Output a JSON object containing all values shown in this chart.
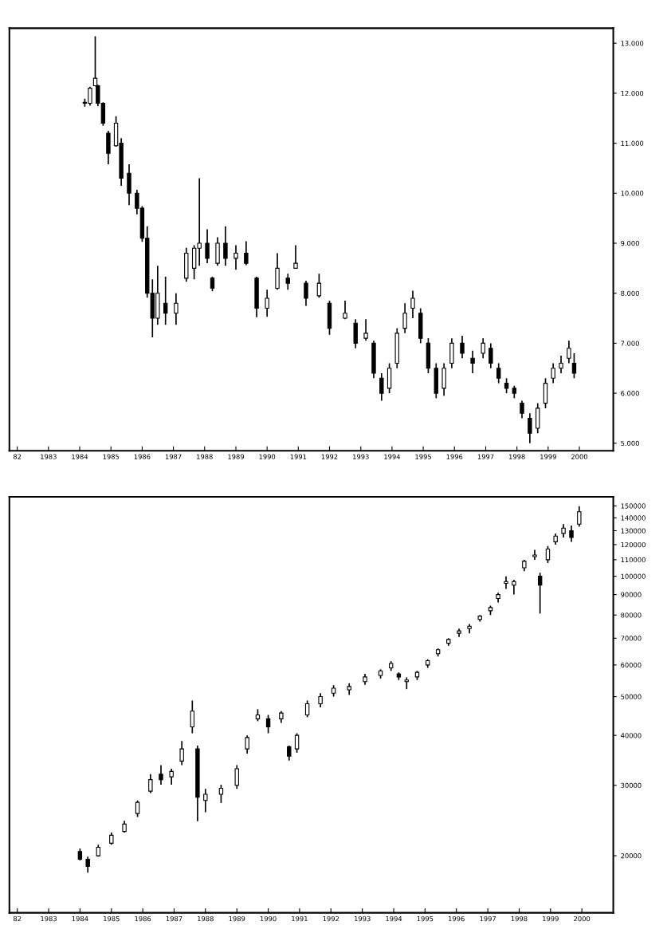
{
  "chart_data": [
    {
      "type": "candlestick",
      "x": [
        "1984-03",
        "1984-05",
        "1984-07",
        "1984-08",
        "1984-10",
        "1984-12",
        "1985-03",
        "1985-05",
        "1985-08",
        "1985-11",
        "1986-01",
        "1986-03",
        "1986-05",
        "1986-07",
        "1986-10",
        "1987-02",
        "1987-06",
        "1987-09",
        "1987-11",
        "1988-02",
        "1988-04",
        "1988-06",
        "1988-09",
        "1989-01",
        "1989-05",
        "1989-09",
        "1990-01",
        "1990-05",
        "1990-09",
        "1990-12",
        "1991-04",
        "1991-09",
        "1992-01",
        "1992-07",
        "1992-11",
        "1993-03",
        "1993-06",
        "1993-09",
        "1993-12",
        "1994-03",
        "1994-06",
        "1994-09",
        "1994-12",
        "1995-03",
        "1995-06",
        "1995-09",
        "1995-12",
        "1996-04",
        "1996-08",
        "1996-12",
        "1997-03",
        "1997-06",
        "1997-09",
        "1997-12",
        "1998-03",
        "1998-06",
        "1998-09",
        "1998-12",
        "1999-03",
        "1999-06",
        "1999-09",
        "1999-11"
      ],
      "ohlc": [
        [
          11.82,
          11.89,
          11.73,
          11.8
        ],
        [
          11.8,
          12.13,
          11.75,
          12.1
        ],
        [
          12.15,
          13.14,
          12.14,
          12.3
        ],
        [
          12.15,
          12.17,
          11.74,
          11.8
        ],
        [
          11.8,
          11.82,
          11.35,
          11.4
        ],
        [
          11.2,
          11.25,
          10.58,
          10.8
        ],
        [
          10.95,
          11.54,
          10.93,
          11.4
        ],
        [
          11.0,
          11.1,
          10.15,
          10.3
        ],
        [
          10.4,
          10.58,
          9.76,
          10.0
        ],
        [
          10.0,
          10.07,
          9.58,
          9.7
        ],
        [
          9.7,
          9.74,
          9.03,
          9.1
        ],
        [
          9.1,
          9.34,
          7.91,
          8.0
        ],
        [
          8.0,
          8.28,
          7.12,
          7.5
        ],
        [
          7.5,
          8.55,
          7.37,
          8.0
        ],
        [
          7.8,
          8.33,
          7.37,
          7.6
        ],
        [
          7.6,
          8.0,
          7.37,
          7.8
        ],
        [
          8.3,
          8.91,
          8.23,
          8.8
        ],
        [
          8.5,
          8.96,
          8.28,
          8.9
        ],
        [
          8.9,
          10.3,
          8.55,
          9.0
        ],
        [
          9.0,
          9.28,
          8.6,
          8.7
        ],
        [
          8.3,
          8.33,
          8.04,
          8.1
        ],
        [
          8.6,
          9.12,
          8.55,
          9.0
        ],
        [
          9.0,
          9.34,
          8.55,
          8.7
        ],
        [
          8.7,
          8.96,
          8.47,
          8.8
        ],
        [
          8.8,
          9.04,
          8.56,
          8.6
        ],
        [
          8.3,
          8.33,
          7.52,
          7.7
        ],
        [
          7.7,
          8.07,
          7.53,
          7.9
        ],
        [
          8.1,
          8.8,
          8.07,
          8.5
        ],
        [
          8.3,
          8.39,
          8.07,
          8.2
        ],
        [
          8.5,
          8.96,
          8.49,
          8.6
        ],
        [
          8.2,
          8.25,
          7.75,
          7.9
        ],
        [
          7.95,
          8.39,
          7.91,
          8.2
        ],
        [
          7.8,
          7.85,
          7.17,
          7.3
        ],
        [
          7.5,
          7.85,
          7.48,
          7.6
        ],
        [
          7.4,
          7.48,
          6.9,
          7.0
        ],
        [
          7.1,
          7.48,
          7.05,
          7.2
        ],
        [
          7.0,
          7.05,
          6.3,
          6.4
        ],
        [
          6.3,
          6.4,
          5.85,
          6.0
        ],
        [
          6.1,
          6.6,
          6.0,
          6.5
        ],
        [
          6.6,
          7.3,
          6.5,
          7.2
        ],
        [
          7.3,
          7.8,
          7.2,
          7.6
        ],
        [
          7.7,
          8.05,
          7.5,
          7.9
        ],
        [
          7.6,
          7.7,
          7.0,
          7.1
        ],
        [
          7.0,
          7.1,
          6.4,
          6.5
        ],
        [
          6.5,
          6.6,
          5.9,
          6.0
        ],
        [
          6.1,
          6.6,
          5.95,
          6.5
        ],
        [
          6.6,
          7.1,
          6.5,
          7.0
        ],
        [
          7.0,
          7.15,
          6.7,
          6.8
        ],
        [
          6.7,
          6.85,
          6.4,
          6.6
        ],
        [
          6.8,
          7.1,
          6.7,
          7.0
        ],
        [
          6.9,
          7.0,
          6.5,
          6.6
        ],
        [
          6.5,
          6.6,
          6.2,
          6.3
        ],
        [
          6.2,
          6.3,
          6.0,
          6.1
        ],
        [
          6.1,
          6.15,
          5.9,
          6.0
        ],
        [
          5.8,
          5.85,
          5.5,
          5.6
        ],
        [
          5.5,
          5.6,
          5.0,
          5.2
        ],
        [
          5.3,
          5.8,
          5.2,
          5.7
        ],
        [
          5.8,
          6.3,
          5.7,
          6.2
        ],
        [
          6.3,
          6.6,
          6.2,
          6.5
        ],
        [
          6.5,
          6.75,
          6.4,
          6.6
        ],
        [
          6.7,
          7.05,
          6.6,
          6.9
        ],
        [
          6.6,
          6.8,
          6.3,
          6.4
        ]
      ],
      "color": "#000000",
      "xlim": [
        "1981-10",
        "2001-02"
      ],
      "xticks": [
        {
          "value": "1982",
          "label": "82"
        },
        "1983",
        "1984",
        "1985",
        "1986",
        "1987",
        "1988",
        "1989",
        "1990",
        "1991",
        "1992",
        "1993",
        "1994",
        "1995",
        "1996",
        "1997",
        "1998",
        "1999",
        "2000"
      ],
      "ylim": [
        4.85,
        13.3
      ],
      "yticks": [
        {
          "value": 5,
          "label": "5.000"
        },
        {
          "value": 6,
          "label": "6.000"
        },
        {
          "value": 7,
          "label": "7.000"
        },
        {
          "value": 8,
          "label": "8.000"
        },
        {
          "value": 9,
          "label": "9.000"
        },
        {
          "value": 10,
          "label": "10.000"
        },
        {
          "value": 11,
          "label": "11.000"
        },
        {
          "value": 12,
          "label": "12.000"
        },
        {
          "value": 13,
          "label": "13.000"
        }
      ],
      "grid": false,
      "legend": false
    },
    {
      "type": "candlestick",
      "x": [
        "1984-01",
        "1984-04",
        "1984-08",
        "1985-01",
        "1985-06",
        "1985-11",
        "1986-04",
        "1986-08",
        "1986-12",
        "1987-04",
        "1987-08",
        "1987-10",
        "1988-01",
        "1988-07",
        "1989-01",
        "1989-05",
        "1989-09",
        "1990-01",
        "1990-06",
        "1990-09",
        "1990-12",
        "1991-04",
        "1991-09",
        "1992-02",
        "1992-08",
        "1993-02",
        "1993-08",
        "1993-12",
        "1994-03",
        "1994-06",
        "1994-10",
        "1995-02",
        "1995-06",
        "1995-10",
        "1996-02",
        "1996-06",
        "1996-10",
        "1997-02",
        "1997-05",
        "1997-08",
        "1997-11",
        "1998-03",
        "1998-07",
        "1998-09",
        "1998-12",
        "1999-03",
        "1999-06",
        "1999-09",
        "1999-12"
      ],
      "ohlc": [
        [
          20500,
          20850,
          19460,
          19600
        ],
        [
          19600,
          19900,
          18140,
          18800
        ],
        [
          20000,
          21300,
          19900,
          21000
        ],
        [
          21500,
          22850,
          21300,
          22500
        ],
        [
          23000,
          24450,
          22850,
          24000
        ],
        [
          25500,
          27500,
          25000,
          27200
        ],
        [
          29000,
          32000,
          28700,
          31000
        ],
        [
          32000,
          33700,
          30100,
          31000
        ],
        [
          31500,
          33000,
          30100,
          32500
        ],
        [
          34500,
          38700,
          33700,
          37000
        ],
        [
          42000,
          48900,
          40500,
          46000
        ],
        [
          37000,
          37700,
          24400,
          28000
        ],
        [
          27500,
          29400,
          25700,
          28500
        ],
        [
          28500,
          30100,
          27100,
          29500
        ],
        [
          30000,
          33700,
          29400,
          33000
        ],
        [
          37000,
          40000,
          36000,
          39500
        ],
        [
          44000,
          46500,
          43400,
          45000
        ],
        [
          44000,
          45000,
          40500,
          42000
        ],
        [
          44000,
          46000,
          43000,
          45500
        ],
        [
          37500,
          37700,
          34600,
          35500
        ],
        [
          37000,
          40500,
          36200,
          40000
        ],
        [
          45000,
          48900,
          44400,
          48000
        ],
        [
          48000,
          50980,
          47000,
          50000
        ],
        [
          51000,
          53400,
          50000,
          52500
        ],
        [
          52000,
          54000,
          50500,
          53000
        ],
        [
          54500,
          57000,
          53500,
          56000
        ],
        [
          56500,
          58500,
          55500,
          58000
        ],
        [
          59000,
          61300,
          58000,
          60500
        ],
        [
          57000,
          57500,
          55000,
          56000
        ],
        [
          54500,
          55900,
          52200,
          55000
        ],
        [
          56000,
          58000,
          55000,
          57500
        ],
        [
          60000,
          62000,
          59000,
          61500
        ],
        [
          64000,
          66000,
          63000,
          65500
        ],
        [
          68000,
          70000,
          67000,
          69500
        ],
        [
          72000,
          74000,
          70500,
          73000
        ],
        [
          74000,
          76000,
          72000,
          75000
        ],
        [
          78000,
          80000,
          77000,
          79500
        ],
        [
          82000,
          84400,
          80000,
          83500
        ],
        [
          88000,
          91000,
          86000,
          90000
        ],
        [
          96000,
          100000,
          93000,
          97000
        ],
        [
          95000,
          98000,
          90000,
          97000
        ],
        [
          105000,
          110000,
          103000,
          109000
        ],
        [
          112000,
          116400,
          110000,
          113000
        ],
        [
          100000,
          102000,
          80700,
          95000
        ],
        [
          110000,
          119000,
          108000,
          117000
        ],
        [
          122000,
          128000,
          120000,
          126000
        ],
        [
          128000,
          135000,
          125000,
          132000
        ],
        [
          130000,
          134000,
          121900,
          125000
        ],
        [
          135000,
          149800,
          133000,
          145000
        ]
      ],
      "color": "#000000",
      "log": true,
      "xlim": [
        "1981-10",
        "2001-01"
      ],
      "xticks": [
        {
          "value": "1982",
          "label": "82"
        },
        "1983",
        "1984",
        "1985",
        "1986",
        "1987",
        "1988",
        "1989",
        "1990",
        "1991",
        "1992",
        "1993",
        "1994",
        "1995",
        "1996",
        "1997",
        "1998",
        "1999",
        "2000"
      ],
      "ylim": [
        14400,
        158000
      ],
      "yticks": [
        20000,
        30000,
        40000,
        50000,
        60000,
        70000,
        80000,
        90000,
        100000,
        110000,
        120000,
        130000,
        140000,
        150000
      ],
      "grid": false,
      "legend": false
    }
  ]
}
